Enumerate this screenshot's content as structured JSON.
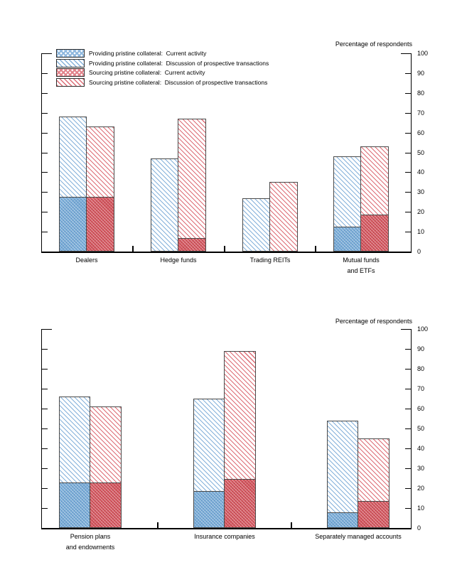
{
  "colors": {
    "providing_blue": "#79acd8",
    "sourcing_red": "#d4575f",
    "hatch_blue_line": "#85b1da",
    "hatch_red_line": "#dd6d76",
    "axis": "#000000",
    "bar_border": "#4a4a4a",
    "background": "#ffffff"
  },
  "legend": {
    "items": [
      {
        "pattern": "blue-current",
        "label": "Providing pristine collateral:  Current activity"
      },
      {
        "pattern": "blue-discussion",
        "label": "Providing pristine collateral:  Discussion of prospective transactions"
      },
      {
        "pattern": "red-current",
        "label": "Sourcing pristine collateral:  Current activity"
      },
      {
        "pattern": "red-discussion",
        "label": "Sourcing pristine collateral:  Discussion of prospective transactions"
      }
    ]
  },
  "chart_data": [
    {
      "type": "bar",
      "title": "Percentage of respondents",
      "ylim": [
        0,
        100
      ],
      "ytick_step": 10,
      "yticks": [
        0,
        10,
        20,
        30,
        40,
        50,
        60,
        70,
        80,
        90,
        100
      ],
      "grid": false,
      "legend_position": "top-left",
      "yaxis_labels_side": "right",
      "categories": [
        [
          "Dealers"
        ],
        [
          "Hedge funds"
        ],
        [
          "Trading REITs"
        ],
        [
          "Mutual funds",
          "and ETFs"
        ]
      ],
      "series": [
        {
          "name": "Providing pristine collateral: Current activity",
          "pattern": "blue-current",
          "values": [
            27,
            0,
            0,
            12
          ]
        },
        {
          "name": "Providing pristine collateral: Discussion of prospective transactions",
          "pattern": "blue-discussion",
          "values": [
            41,
            47,
            27,
            36
          ]
        },
        {
          "name": "Sourcing pristine collateral: Current activity",
          "pattern": "red-current",
          "values": [
            27,
            6,
            0,
            18
          ]
        },
        {
          "name": "Sourcing pristine collateral: Discussion of prospective transactions",
          "pattern": "red-discussion",
          "values": [
            36,
            61,
            35,
            35
          ]
        }
      ],
      "stack_totals": {
        "providing": [
          68,
          47,
          27,
          48
        ],
        "sourcing": [
          63,
          67,
          35,
          53
        ]
      }
    },
    {
      "type": "bar",
      "title": "Percentage of respondents",
      "ylim": [
        0,
        100
      ],
      "ytick_step": 10,
      "yticks": [
        0,
        10,
        20,
        30,
        40,
        50,
        60,
        70,
        80,
        90,
        100
      ],
      "grid": false,
      "legend_position": "none",
      "yaxis_labels_side": "right",
      "categories": [
        [
          "Pension plans",
          "and endowments"
        ],
        [
          "Insurance companies"
        ],
        [
          "Separately managed accounts"
        ]
      ],
      "series": [
        {
          "name": "Providing pristine collateral: Current activity",
          "pattern": "blue-current",
          "values": [
            22,
            18,
            7
          ]
        },
        {
          "name": "Providing pristine collateral: Discussion of prospective transactions",
          "pattern": "blue-discussion",
          "values": [
            44,
            47,
            47
          ]
        },
        {
          "name": "Sourcing pristine collateral: Current activity",
          "pattern": "red-current",
          "values": [
            22,
            24,
            13
          ]
        },
        {
          "name": "Sourcing pristine collateral: Discussion of prospective transactions",
          "pattern": "red-discussion",
          "values": [
            39,
            65,
            32
          ]
        }
      ],
      "stack_totals": {
        "providing": [
          66,
          65,
          54
        ],
        "sourcing": [
          61,
          89,
          45
        ]
      }
    }
  ]
}
